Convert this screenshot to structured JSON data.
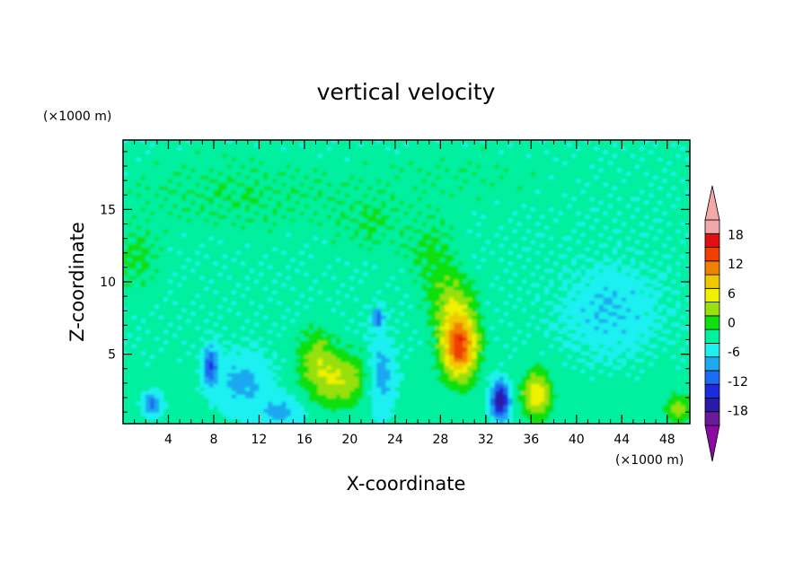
{
  "chart_data": {
    "type": "heatmap",
    "title": "vertical velocity",
    "xlabel": "X-coordinate",
    "ylabel": "Z-coordinate",
    "x_unit": "(×1000 m)",
    "y_unit": "(×1000 m)",
    "xlim": [
      0,
      50
    ],
    "ylim": [
      0.2,
      19.8
    ],
    "x_ticks": [
      4,
      8,
      12,
      16,
      20,
      24,
      28,
      32,
      36,
      40,
      44,
      48
    ],
    "x_tick_labels": [
      "4",
      "8",
      "12",
      "16",
      "20",
      "24",
      "28",
      "32",
      "36",
      "40",
      "44",
      "48"
    ],
    "y_ticks": [
      5,
      10,
      15
    ],
    "y_tick_labels": [
      "5",
      "10",
      "15"
    ],
    "background_value": -2,
    "features": [
      {
        "x": 29.7,
        "z": 5.5,
        "sx": 1.5,
        "sz": 2.2,
        "value": 19
      },
      {
        "x": 29.0,
        "z": 8.5,
        "sx": 1.8,
        "sz": 2.0,
        "value": 6
      },
      {
        "x": 19.0,
        "z": 3.2,
        "sx": 2.6,
        "sz": 1.8,
        "value": 8
      },
      {
        "x": 17.0,
        "z": 5.0,
        "sx": 1.5,
        "sz": 1.8,
        "value": 5
      },
      {
        "x": 36.5,
        "z": 2.2,
        "sx": 1.3,
        "sz": 1.6,
        "value": 10
      },
      {
        "x": 33.3,
        "z": 1.8,
        "sx": 0.8,
        "sz": 1.3,
        "value": -16
      },
      {
        "x": 22.8,
        "z": 3.5,
        "sx": 1.2,
        "sz": 2.5,
        "value": -6
      },
      {
        "x": 22.5,
        "z": 7.5,
        "sx": 0.5,
        "sz": 0.7,
        "value": -9
      },
      {
        "x": 7.7,
        "z": 4.2,
        "sx": 0.6,
        "sz": 1.3,
        "value": -10
      },
      {
        "x": 2.6,
        "z": 1.5,
        "sx": 0.8,
        "sz": 0.8,
        "value": -8
      },
      {
        "x": 10.5,
        "z": 3.0,
        "sx": 2.5,
        "sz": 2.0,
        "value": -5
      },
      {
        "x": 49.0,
        "z": 1.2,
        "sx": 1.2,
        "sz": 1.0,
        "value": 6
      },
      {
        "x": 27.2,
        "z": 12.0,
        "sx": 2.0,
        "sz": 2.5,
        "value": 3
      },
      {
        "x": 10.0,
        "z": 16.0,
        "sx": 10.0,
        "sz": 2.5,
        "value": 2
      },
      {
        "x": 30.0,
        "z": 17.5,
        "sx": 8.0,
        "sz": 2.0,
        "value": 1
      },
      {
        "x": 1.0,
        "z": 11.5,
        "sx": 2.0,
        "sz": 2.0,
        "value": 3
      },
      {
        "x": 22.0,
        "z": 14.0,
        "sx": 3.0,
        "sz": 2.0,
        "value": 2
      },
      {
        "x": 43.0,
        "z": 8.0,
        "sx": 4.0,
        "sz": 3.0,
        "value": -4
      },
      {
        "x": 14.0,
        "z": 1.0,
        "sx": 2.0,
        "sz": 1.0,
        "value": -5
      }
    ],
    "colorbar": {
      "levels": [
        -21,
        -18,
        -15,
        -12,
        -9,
        -6,
        -3,
        0,
        3,
        6,
        9,
        12,
        15,
        18,
        21
      ],
      "tick_labels": [
        "-18",
        "-12",
        "-6",
        "0",
        "6",
        "12",
        "18"
      ],
      "tick_values": [
        -18,
        -12,
        -6,
        0,
        6,
        12,
        18
      ],
      "colors": [
        "#6a1a9a",
        "#2a1aa8",
        "#1a2ce0",
        "#1a6cf0",
        "#1ea8f0",
        "#1ef0f0",
        "#00f0a0",
        "#10e010",
        "#98e010",
        "#f0f000",
        "#f0c800",
        "#f08000",
        "#f04000",
        "#e01010",
        "#f0a8a8"
      ],
      "below_color": "#8c0aa0",
      "above_color": "#f5a8a8"
    }
  }
}
